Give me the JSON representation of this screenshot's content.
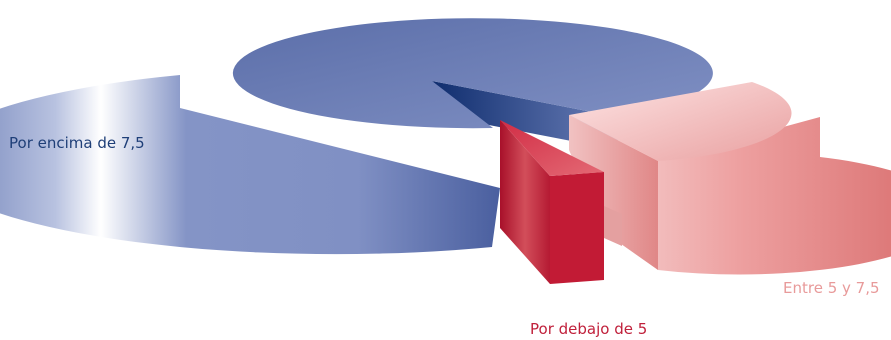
{
  "chart_data": {
    "type": "pie",
    "style": "3d-exploded",
    "slices": [
      {
        "label": "Por encima de 7,5",
        "value": 71,
        "color": "#3f5596"
      },
      {
        "label": "Entre 5 y 7,5",
        "value": 24,
        "color": "#e58a8a"
      },
      {
        "label": "Por debajo de 5",
        "value": 5,
        "color": "#c11f36"
      }
    ]
  }
}
